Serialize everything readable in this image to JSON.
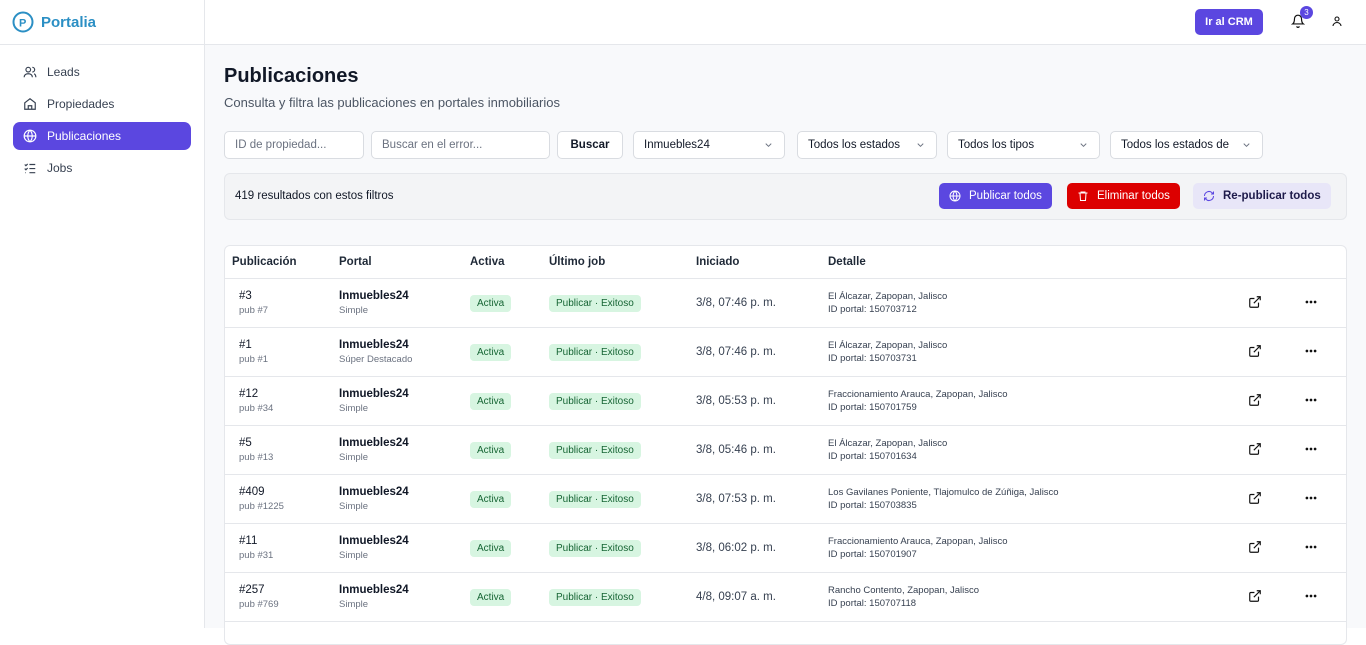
{
  "brand": "Portalia",
  "topbar": {
    "crm_button": "Ir al CRM",
    "notifications": "3"
  },
  "nav": {
    "items": [
      "Leads",
      "Propiedades",
      "Publicaciones",
      "Jobs"
    ],
    "active": 2
  },
  "header": {
    "title": "Publicaciones",
    "subtitle": "Consulta y filtra las publicaciones en portales inmobiliarios"
  },
  "filters": {
    "inputs": [
      "ID de propiedad...",
      "Buscar en el error..."
    ],
    "search_button": "Buscar",
    "selects": [
      "Inmuebles24",
      "Todos los estados",
      "Todos los tipos",
      "Todos los estados de"
    ]
  },
  "results": {
    "text": "419 resultados con estos filtros",
    "actions": [
      "Publicar todos",
      "Eliminar todos",
      "Re-publicar todos"
    ]
  },
  "table": {
    "columns": [
      "Publicación",
      "Portal",
      "Activa",
      "Último job",
      "Iniciado",
      "Detalle"
    ],
    "rows": [
      {
        "id": "#3",
        "pub": "pub #7",
        "portal": "Inmuebles24",
        "tier": "Simple",
        "active": "Activa",
        "job": "Publicar · Exitoso",
        "started": "3/8, 07:46 p. m.",
        "location": "El Álcazar, Zapopan, Jalisco",
        "portal_id": "ID portal: 150703712"
      },
      {
        "id": "#1",
        "pub": "pub #1",
        "portal": "Inmuebles24",
        "tier": "Súper Destacado",
        "active": "Activa",
        "job": "Publicar · Exitoso",
        "started": "3/8, 07:46 p. m.",
        "location": "El Álcazar, Zapopan, Jalisco",
        "portal_id": "ID portal: 150703731"
      },
      {
        "id": "#12",
        "pub": "pub #34",
        "portal": "Inmuebles24",
        "tier": "Simple",
        "active": "Activa",
        "job": "Publicar · Exitoso",
        "started": "3/8, 05:53 p. m.",
        "location": "Fraccionamiento Arauca, Zapopan, Jalisco",
        "portal_id": "ID portal: 150701759"
      },
      {
        "id": "#5",
        "pub": "pub #13",
        "portal": "Inmuebles24",
        "tier": "Simple",
        "active": "Activa",
        "job": "Publicar · Exitoso",
        "started": "3/8, 05:46 p. m.",
        "location": "El Álcazar, Zapopan, Jalisco",
        "portal_id": "ID portal: 150701634"
      },
      {
        "id": "#409",
        "pub": "pub #1225",
        "portal": "Inmuebles24",
        "tier": "Simple",
        "active": "Activa",
        "job": "Publicar · Exitoso",
        "started": "3/8, 07:53 p. m.",
        "location": "Los Gavilanes Poniente, Tlajomulco de Zúñiga, Jalisco",
        "portal_id": "ID portal: 150703835"
      },
      {
        "id": "#11",
        "pub": "pub #31",
        "portal": "Inmuebles24",
        "tier": "Simple",
        "active": "Activa",
        "job": "Publicar · Exitoso",
        "started": "3/8, 06:02 p. m.",
        "location": "Fraccionamiento Arauca, Zapopan, Jalisco",
        "portal_id": "ID portal: 150701907"
      },
      {
        "id": "#257",
        "pub": "pub #769",
        "portal": "Inmuebles24",
        "tier": "Simple",
        "active": "Activa",
        "job": "Publicar · Exitoso",
        "started": "4/8, 09:07 a. m.",
        "location": "Rancho Contento, Zapopan, Jalisco",
        "portal_id": "ID portal: 150707118"
      }
    ]
  }
}
